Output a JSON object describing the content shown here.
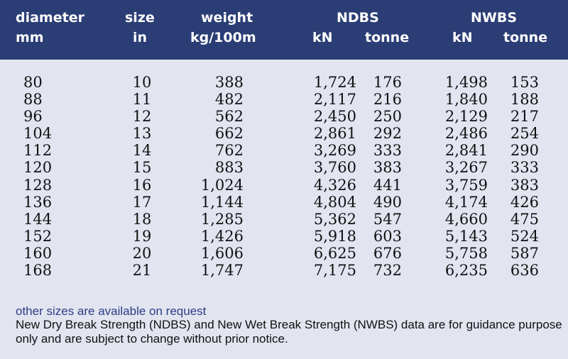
{
  "header": {
    "diameter": "diameter",
    "diameter_unit": "mm",
    "size": "size",
    "size_unit": "in",
    "weight": "weight",
    "weight_unit": "kg/100m",
    "ndbs": "NDBS",
    "ndbs_kn": "kN",
    "ndbs_tonne": "tonne",
    "nwbs": "NWBS",
    "nwbs_kn": "kN",
    "nwbs_tonne": "tonne"
  },
  "rows": [
    [
      "80",
      "10",
      "388",
      "1,724",
      "176",
      "1,498",
      "153"
    ],
    [
      "88",
      "11",
      "482",
      "2,117",
      "216",
      "1,840",
      "188"
    ],
    [
      "96",
      "12",
      "562",
      "2,450",
      "250",
      "2,129",
      "217"
    ],
    [
      "104",
      "13",
      "662",
      "2,861",
      "292",
      "2,486",
      "254"
    ],
    [
      "112",
      "14",
      "762",
      "3,269",
      "333",
      "2,841",
      "290"
    ],
    [
      "120",
      "15",
      "883",
      "3,760",
      "383",
      "3,267",
      "333"
    ],
    [
      "128",
      "16",
      "1,024",
      "4,326",
      "441",
      "3,759",
      "383"
    ],
    [
      "136",
      "17",
      "1,144",
      "4,804",
      "490",
      "4,174",
      "426"
    ],
    [
      "144",
      "18",
      "1,285",
      "5,362",
      "547",
      "4,660",
      "475"
    ],
    [
      "152",
      "19",
      "1,426",
      "5,918",
      "603",
      "5,143",
      "524"
    ],
    [
      "160",
      "20",
      "1,606",
      "6,625",
      "676",
      "5,758",
      "587"
    ],
    [
      "168",
      "21",
      "1,747",
      "7,175",
      "732",
      "6,235",
      "636"
    ]
  ],
  "notes": {
    "availability": "other sizes are available on request",
    "disclaimer": "New Dry Break Strength (NDBS) and New Wet Break Strength (NWBS) data are for guidance purpose only and are subject to change without prior notice."
  }
}
